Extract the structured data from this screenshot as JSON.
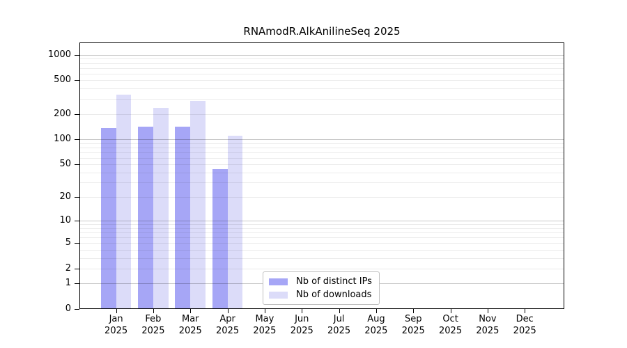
{
  "chart_data": {
    "type": "bar",
    "title": "RNAmodR.AlkAnilineSeq 2025",
    "categories": [
      "Jan 2025",
      "Feb 2025",
      "Mar 2025",
      "Apr 2025",
      "May 2025",
      "Jun 2025",
      "Jul 2025",
      "Aug 2025",
      "Sep 2025",
      "Oct 2025",
      "Nov 2025",
      "Dec 2025"
    ],
    "month_labels": [
      "Jan",
      "Feb",
      "Mar",
      "Apr",
      "May",
      "Jun",
      "Jul",
      "Aug",
      "Sep",
      "Oct",
      "Nov",
      "Dec"
    ],
    "year_label": "2025",
    "series": [
      {
        "name": "Nb of distinct IPs",
        "color": "#a6a6f6",
        "values": [
          135,
          141,
          142,
          44,
          0,
          0,
          0,
          0,
          0,
          0,
          0,
          0
        ]
      },
      {
        "name": "Nb of downloads",
        "color": "#dcdcf9",
        "values": [
          340,
          238,
          287,
          110,
          0,
          0,
          0,
          0,
          0,
          0,
          0,
          0
        ]
      }
    ],
    "y_axis": {
      "scale": "log10(1+x)",
      "tick_values": [
        0,
        1,
        2,
        5,
        10,
        20,
        50,
        100,
        200,
        500,
        1000
      ],
      "tick_labels": [
        "0",
        "1",
        "2",
        "5",
        "10",
        "20",
        "50",
        "100",
        "200",
        "500",
        "1000"
      ],
      "ylim": [
        0,
        1400
      ],
      "grid": "horizontal major and minor log gridlines drawn over bars"
    },
    "legend": {
      "position": "lower center-left",
      "entries": [
        "Nb of distinct IPs",
        "Nb of downloads"
      ]
    }
  },
  "colors": {
    "background": "#ffffff",
    "text": "#000000",
    "axis": "#000000",
    "grid_major": "rgba(0,0,0,0.22)",
    "grid_minor": "rgba(0,0,0,0.08)",
    "legend_border": "#c0c0c0",
    "legend_background": "#ffffff"
  }
}
